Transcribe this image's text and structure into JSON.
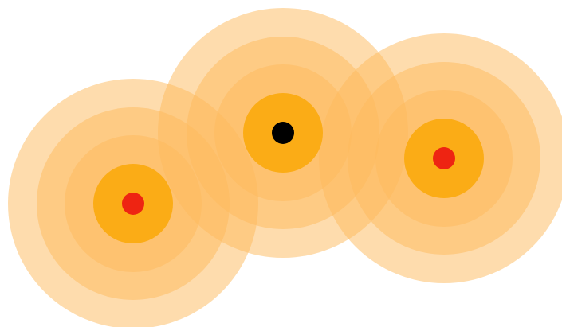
{
  "diagram": {
    "ring_color": "#fdba5c",
    "ring_opacity": 0.5,
    "core_color": "#fbac16",
    "nodes": [
      {
        "name": "left-node",
        "center_color": "#ee2412"
      },
      {
        "name": "center-node",
        "center_color": "#000000"
      },
      {
        "name": "right-node",
        "center_color": "#ee2412"
      }
    ]
  }
}
